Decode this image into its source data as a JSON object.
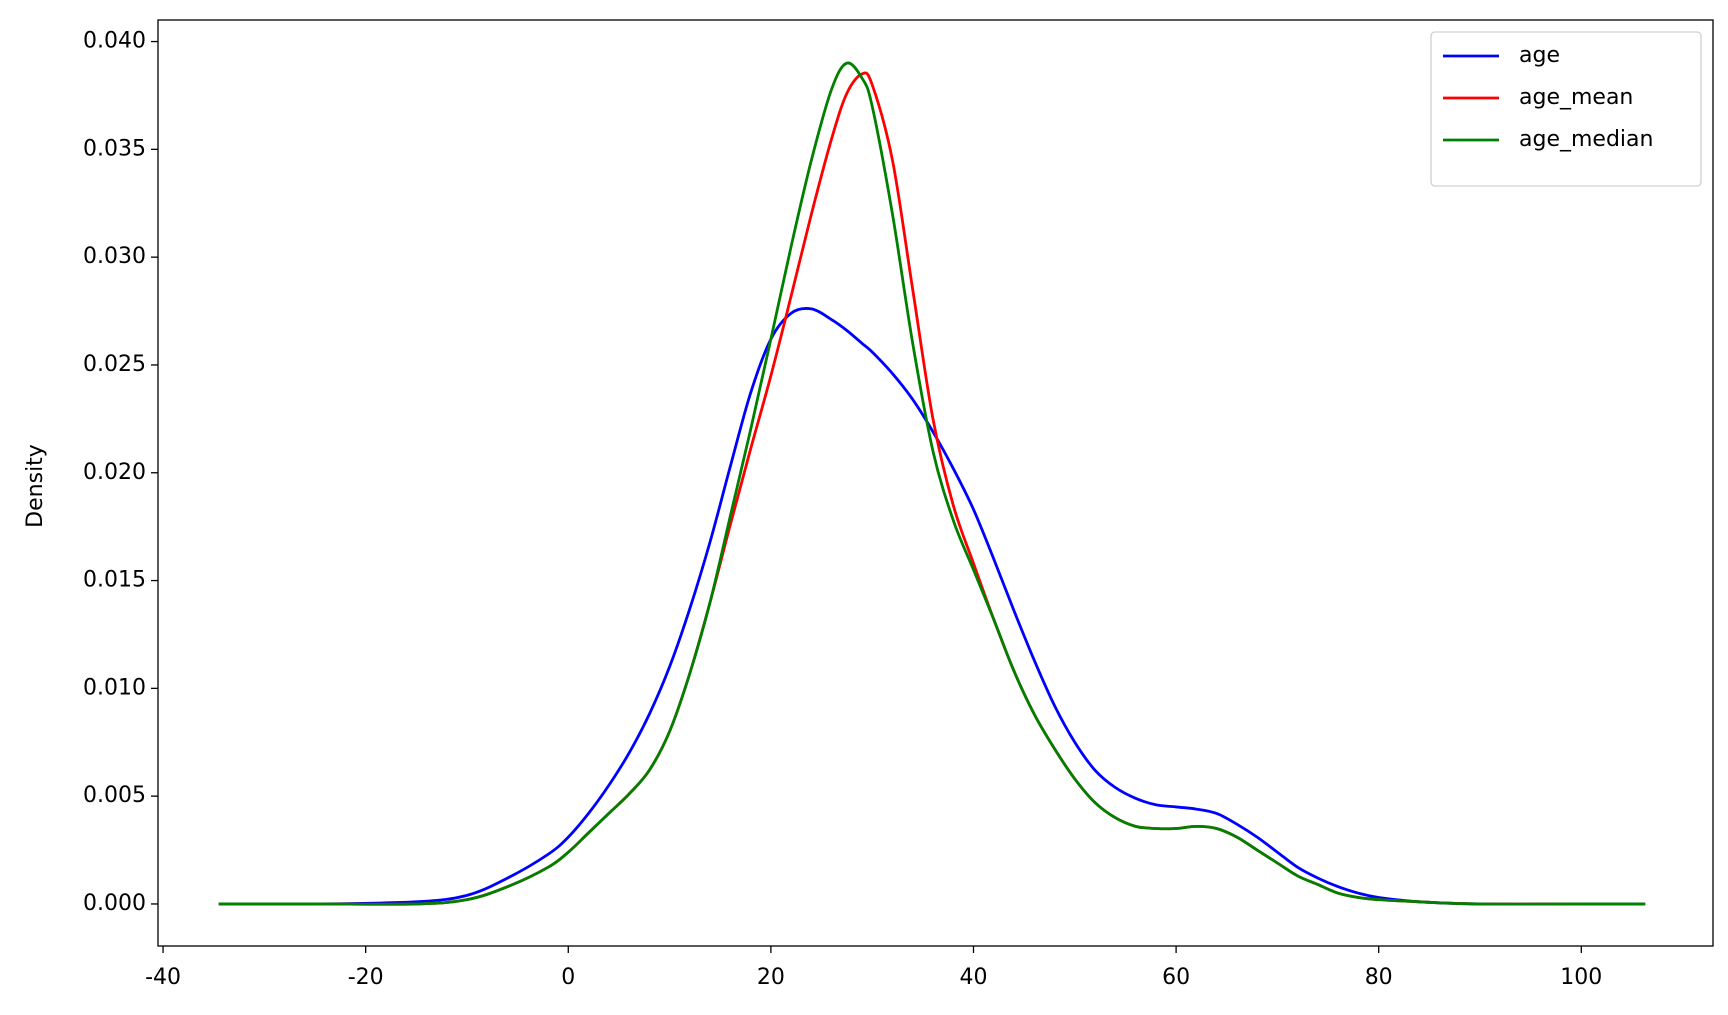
{
  "chart_data": {
    "type": "line",
    "ylabel": "Density",
    "legend": "upper right",
    "grid": false,
    "x": [
      -34.5,
      -25,
      -15,
      -10,
      -6,
      -2,
      0,
      2,
      4,
      6,
      8,
      10,
      12,
      14,
      16,
      18,
      20,
      22,
      24,
      26,
      27.5,
      29,
      30,
      32,
      34,
      36,
      38,
      40,
      42,
      44,
      46,
      48,
      50,
      52,
      54,
      56,
      58,
      60,
      62,
      64,
      66,
      68,
      70,
      72,
      74,
      76,
      78,
      80,
      84,
      90,
      100,
      106.3
    ],
    "series": [
      {
        "name": "age",
        "color": "#0000ff",
        "values": [
          0,
          0,
          0.0001,
          0.0004,
          0.0012,
          0.0023,
          0.0031,
          0.0042,
          0.0055,
          0.007,
          0.0088,
          0.011,
          0.0137,
          0.0168,
          0.0203,
          0.0237,
          0.0262,
          0.0274,
          0.0276,
          0.0271,
          0.0266,
          0.026,
          0.0256,
          0.0246,
          0.0234,
          0.0219,
          0.0202,
          0.0183,
          0.016,
          0.0136,
          0.0113,
          0.0092,
          0.0075,
          0.0062,
          0.0054,
          0.0049,
          0.0046,
          0.0045,
          0.0044,
          0.0042,
          0.0037,
          0.0031,
          0.0024,
          0.0017,
          0.0012,
          0.0008,
          0.0005,
          0.0003,
          0.0001,
          0,
          0,
          0
        ]
      },
      {
        "name": "age_mean",
        "color": "#ff0000",
        "values": [
          0,
          0,
          0,
          0.0002,
          0.0008,
          0.0017,
          0.0024,
          0.0033,
          0.0042,
          0.0051,
          0.0062,
          0.008,
          0.0107,
          0.014,
          0.0176,
          0.0211,
          0.0245,
          0.0282,
          0.032,
          0.0355,
          0.0376,
          0.0385,
          0.038,
          0.0345,
          0.0285,
          0.0225,
          0.0185,
          0.0158,
          0.0132,
          0.0108,
          0.0088,
          0.0072,
          0.0058,
          0.0047,
          0.004,
          0.0036,
          0.0035,
          0.0035,
          0.0036,
          0.0035,
          0.0031,
          0.0025,
          0.0019,
          0.0013,
          0.0009,
          0.0005,
          0.0003,
          0.0002,
          0.0001,
          0,
          0,
          0
        ]
      },
      {
        "name": "age_median",
        "color": "#008000",
        "values": [
          0,
          0,
          0,
          0.0002,
          0.0008,
          0.0017,
          0.0024,
          0.0033,
          0.0042,
          0.0051,
          0.0062,
          0.008,
          0.0107,
          0.014,
          0.018,
          0.022,
          0.0262,
          0.0305,
          0.0345,
          0.0378,
          0.039,
          0.0383,
          0.037,
          0.032,
          0.026,
          0.021,
          0.0178,
          0.0155,
          0.0132,
          0.0108,
          0.0088,
          0.0072,
          0.0058,
          0.0047,
          0.004,
          0.0036,
          0.0035,
          0.0035,
          0.0036,
          0.0035,
          0.0031,
          0.0025,
          0.0019,
          0.0013,
          0.0009,
          0.0005,
          0.0003,
          0.0002,
          0.0001,
          0,
          0,
          0
        ]
      }
    ],
    "xlim": [
      -40.5,
      113
    ],
    "ylim": [
      -0.00195,
      0.041
    ],
    "xticks": [
      -40,
      -20,
      0,
      20,
      40,
      60,
      80,
      100
    ],
    "yticks": [
      {
        "value": 0,
        "label": "0.000"
      },
      {
        "value": 0.005,
        "label": "0.005"
      },
      {
        "value": 0.01,
        "label": "0.010"
      },
      {
        "value": 0.015,
        "label": "0.015"
      },
      {
        "value": 0.02,
        "label": "0.020"
      },
      {
        "value": 0.025,
        "label": "0.025"
      },
      {
        "value": 0.03,
        "label": "0.030"
      },
      {
        "value": 0.035,
        "label": "0.035"
      },
      {
        "value": 0.04,
        "label": "0.040"
      }
    ]
  }
}
